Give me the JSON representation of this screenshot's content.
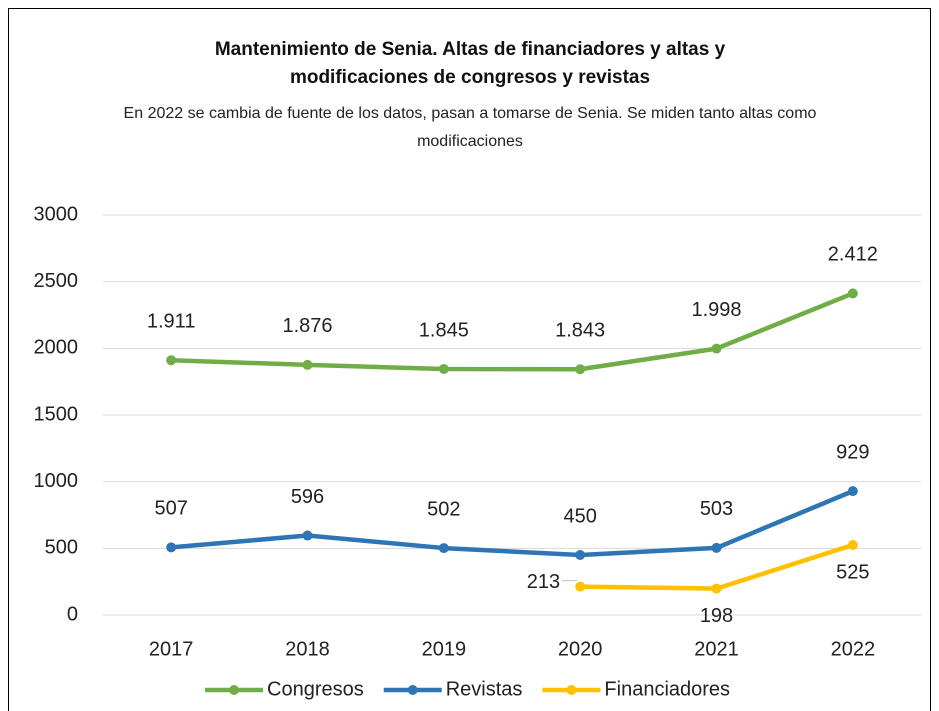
{
  "chart_data": {
    "type": "line",
    "title": "Mantenimiento de Senia. Altas  de financiadores y altas y modificaciones de congresos y revistas",
    "subtitle": "En 2022 se cambia de fuente de los datos, pasan a tomarse de Senia. Se miden tanto altas como modificaciones",
    "categories": [
      "2017",
      "2018",
      "2019",
      "2020",
      "2021",
      "2022"
    ],
    "series": [
      {
        "name": "Congresos",
        "color": "#70ad47",
        "values": [
          1911,
          1876,
          1845,
          1843,
          1998,
          2412
        ],
        "value_labels": [
          "1.911",
          "1.876",
          "1.845",
          "1.843",
          "1.998",
          "2.412"
        ]
      },
      {
        "name": "Revistas",
        "color": "#2e75b6",
        "values": [
          507,
          596,
          502,
          450,
          503,
          929
        ]
      },
      {
        "name": "Financiadores",
        "color": "#ffc000",
        "values": [
          null,
          null,
          null,
          213,
          198,
          525
        ]
      }
    ],
    "ylim": [
      0,
      3000
    ],
    "yticks": [
      0,
      500,
      1000,
      1500,
      2000,
      2500,
      3000
    ],
    "grid": true,
    "legend": "bottom"
  }
}
